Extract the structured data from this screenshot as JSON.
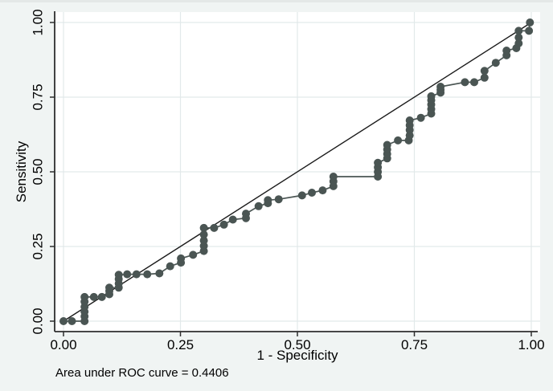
{
  "figure": {
    "background_color": "#f0f4f3",
    "plot_background_color": "#ffffff",
    "gridline_color": "#e2e9ea",
    "axis_color": "#2e2e2e",
    "text_color": "#000000"
  },
  "chart_data": {
    "type": "line",
    "title": "",
    "xlabel": "1 - Specificity",
    "ylabel": "Sensitivity",
    "xlim": [
      0,
      1
    ],
    "ylim": [
      0,
      1
    ],
    "grid": true,
    "legend": "none",
    "x_ticks": [
      "0.00",
      "0.25",
      "0.50",
      "0.75",
      "1.00"
    ],
    "y_ticks": [
      "0.00",
      "0.25",
      "0.50",
      "0.75",
      "1.00"
    ],
    "annotation": "Area under ROC curve = 0.4406",
    "auc": 0.4406,
    "reference_line": {
      "name": "chance-diagonal",
      "from": [
        0,
        0
      ],
      "to": [
        1,
        1
      ],
      "color": "#1a1a1a"
    },
    "series": [
      {
        "name": "ROC curve",
        "marker": "circle",
        "marker_radius": 5,
        "color": "#4a5553",
        "points": [
          [
            0.0,
            0.0
          ],
          [
            0.018,
            0.0
          ],
          [
            0.045,
            0.0
          ],
          [
            0.045,
            0.016
          ],
          [
            0.045,
            0.032
          ],
          [
            0.045,
            0.048
          ],
          [
            0.045,
            0.065
          ],
          [
            0.045,
            0.081
          ],
          [
            0.065,
            0.081
          ],
          [
            0.082,
            0.081
          ],
          [
            0.098,
            0.09
          ],
          [
            0.098,
            0.101
          ],
          [
            0.098,
            0.112
          ],
          [
            0.118,
            0.112
          ],
          [
            0.118,
            0.126
          ],
          [
            0.118,
            0.141
          ],
          [
            0.118,
            0.155
          ],
          [
            0.136,
            0.157
          ],
          [
            0.156,
            0.157
          ],
          [
            0.179,
            0.157
          ],
          [
            0.205,
            0.16
          ],
          [
            0.228,
            0.184
          ],
          [
            0.251,
            0.196
          ],
          [
            0.251,
            0.21
          ],
          [
            0.277,
            0.222
          ],
          [
            0.3,
            0.235
          ],
          [
            0.3,
            0.252
          ],
          [
            0.3,
            0.27
          ],
          [
            0.3,
            0.29
          ],
          [
            0.3,
            0.312
          ],
          [
            0.322,
            0.312
          ],
          [
            0.343,
            0.323
          ],
          [
            0.362,
            0.34
          ],
          [
            0.39,
            0.345
          ],
          [
            0.39,
            0.36
          ],
          [
            0.417,
            0.385
          ],
          [
            0.437,
            0.395
          ],
          [
            0.437,
            0.405
          ],
          [
            0.46,
            0.408
          ],
          [
            0.51,
            0.421
          ],
          [
            0.531,
            0.43
          ],
          [
            0.554,
            0.438
          ],
          [
            0.577,
            0.452
          ],
          [
            0.577,
            0.468
          ],
          [
            0.577,
            0.484
          ],
          [
            0.672,
            0.484
          ],
          [
            0.672,
            0.5
          ],
          [
            0.672,
            0.515
          ],
          [
            0.672,
            0.53
          ],
          [
            0.692,
            0.545
          ],
          [
            0.692,
            0.56
          ],
          [
            0.692,
            0.575
          ],
          [
            0.692,
            0.59
          ],
          [
            0.715,
            0.605
          ],
          [
            0.738,
            0.605
          ],
          [
            0.74,
            0.622
          ],
          [
            0.74,
            0.64
          ],
          [
            0.74,
            0.656
          ],
          [
            0.74,
            0.672
          ],
          [
            0.764,
            0.681
          ],
          [
            0.786,
            0.695
          ],
          [
            0.786,
            0.71
          ],
          [
            0.786,
            0.725
          ],
          [
            0.786,
            0.74
          ],
          [
            0.786,
            0.753
          ],
          [
            0.806,
            0.765
          ],
          [
            0.806,
            0.775
          ],
          [
            0.806,
            0.785
          ],
          [
            0.858,
            0.8
          ],
          [
            0.878,
            0.8
          ],
          [
            0.9,
            0.815
          ],
          [
            0.9,
            0.838
          ],
          [
            0.924,
            0.865
          ],
          [
            0.947,
            0.89
          ],
          [
            0.947,
            0.906
          ],
          [
            0.968,
            0.914
          ],
          [
            0.973,
            0.93
          ],
          [
            0.973,
            0.95
          ],
          [
            0.973,
            0.972
          ],
          [
            0.995,
            0.972
          ],
          [
            0.997,
            1.0
          ]
        ]
      }
    ]
  }
}
